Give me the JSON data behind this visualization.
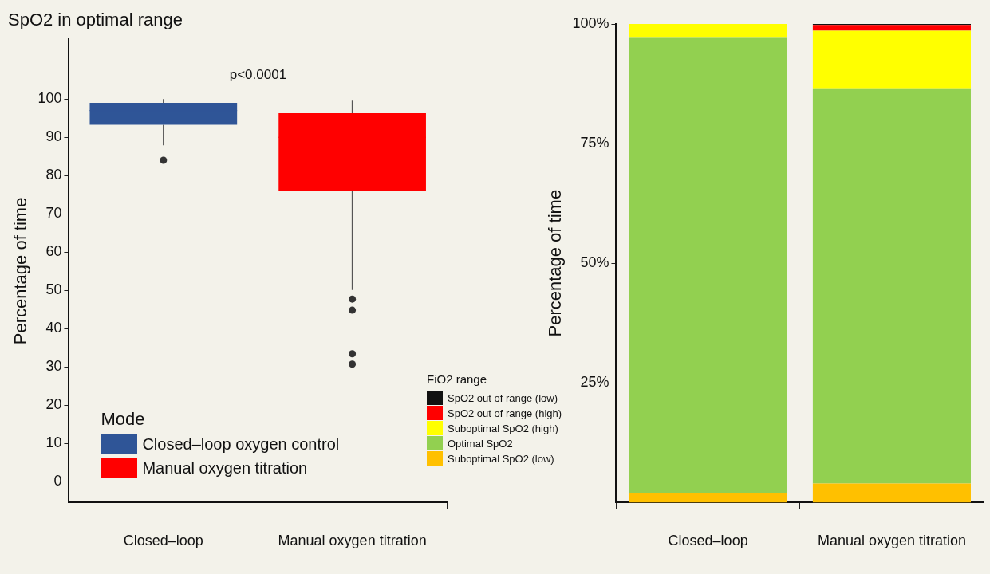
{
  "chart_data": [
    {
      "type": "box",
      "title": "SpO2 in optimal range",
      "ylabel": "Percentage of time",
      "legend_title": "Mode",
      "categories": [
        "Closed–loop",
        "Manual oxygen titration"
      ],
      "series": [
        {
          "name": "Closed–loop oxygen control",
          "color": "#2f5597",
          "boxes": [
            {
              "low": 87.9,
              "q1": 93.3,
              "median": 97,
              "q3": 99,
              "high": 100,
              "outliers": [
                84
              ]
            },
            null
          ]
        },
        {
          "name": "Manual oxygen titration",
          "color": "#ff0000",
          "boxes": [
            null,
            {
              "low": 50.1,
              "q1": 76.1,
              "median": 90,
              "q3": 96.3,
              "high": 99.6,
              "outliers": [
                47.7,
                44.8,
                33.4,
                30.7
              ]
            }
          ]
        }
      ],
      "ylim": [
        -5.5,
        115.6
      ],
      "yticks": [
        0,
        10,
        20,
        30,
        40,
        50,
        60,
        70,
        80,
        90,
        100
      ],
      "grid": false,
      "legend": "bottom left",
      "annotations": [
        "p<0.0001"
      ]
    },
    {
      "type": "bar",
      "stacked": true,
      "ylabel": "Percentage of time",
      "legend_title": "FiO2 range",
      "categories": [
        "Closed–loop",
        "Manual oxygen titration"
      ],
      "series": [
        {
          "name": "Suboptimal SpO2 (low)",
          "color": "#ffc000",
          "values": [
            2.0,
            4.0
          ]
        },
        {
          "name": "Optimal SpO2",
          "color": "#92d050",
          "values": [
            95.1,
            82.4
          ]
        },
        {
          "name": "Suboptimal SpO2 (high)",
          "color": "#ffff00",
          "values": [
            2.9,
            12.2
          ]
        },
        {
          "name": "SpO2 out of range (high)",
          "color": "#ff0000",
          "values": [
            0,
            1.2
          ]
        },
        {
          "name": "SpO2 out of range (low)",
          "color": "#111111",
          "values": [
            0,
            0.2
          ]
        }
      ],
      "ylim": [
        0,
        100
      ],
      "yticks": [
        {
          "value": 25,
          "label": "25%"
        },
        {
          "value": 50,
          "label": "50%"
        },
        {
          "value": 75,
          "label": "75%"
        },
        {
          "value": 100,
          "label": "100%"
        }
      ],
      "grid": false,
      "legend": "left"
    }
  ]
}
